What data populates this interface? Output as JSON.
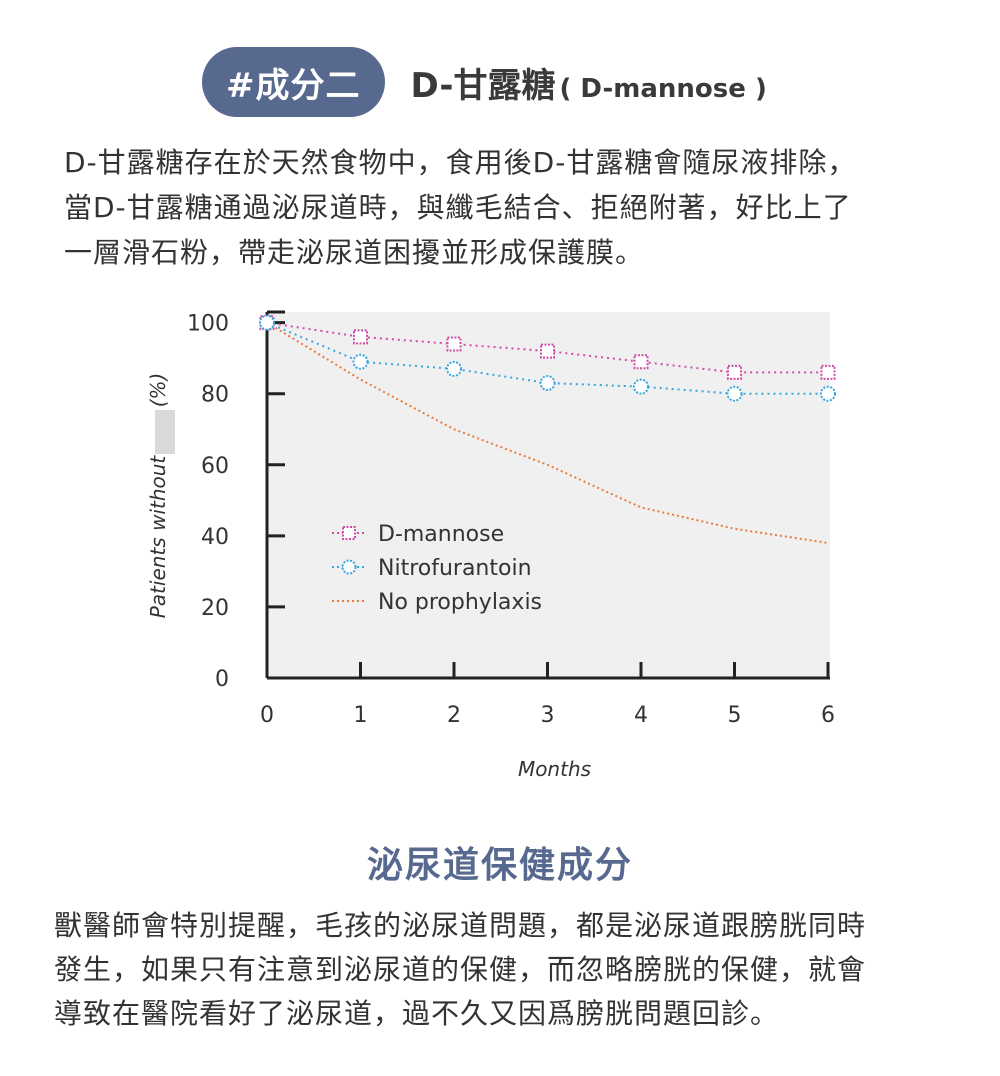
{
  "header": {
    "badge": "#成分二",
    "title": "D-甘露糖",
    "title_sub": "( D-mannose )"
  },
  "intro": {
    "lines": [
      "D-甘露糖存在於天然食物中，食用後D-甘露糖會隨尿液排除，",
      "當D-甘露糖通過泌尿道時，與纖毛結合、拒絕附著，好比上了",
      "一層滑石粉，帶走泌尿道困擾並形成保護膜。"
    ]
  },
  "chart_data": {
    "type": "line",
    "xlabel": "Months",
    "ylabel": "Patients without",
    "ylabel_unit": "(%)",
    "x": [
      0,
      1,
      2,
      3,
      4,
      5,
      6
    ],
    "xlim": [
      0,
      6
    ],
    "ylim": [
      0,
      100
    ],
    "xticks": [
      "0",
      "1",
      "2",
      "3",
      "4",
      "5",
      "6"
    ],
    "yticks": [
      "0",
      "20",
      "40",
      "60",
      "80",
      "100"
    ],
    "grid": false,
    "legend_position": "center-left",
    "series": [
      {
        "name": "D-mannose",
        "values": [
          100,
          96,
          94,
          92,
          89,
          86,
          86
        ],
        "color": "#d04ca8",
        "marker": "square"
      },
      {
        "name": "Nitrofurantoin",
        "values": [
          100,
          89,
          87,
          83,
          82,
          80,
          80
        ],
        "color": "#3aa5dd",
        "marker": "circle"
      },
      {
        "name": "No prophylaxis",
        "values": [
          100,
          84,
          70,
          60,
          48,
          42,
          38
        ],
        "color": "#e87b3a",
        "marker": "none"
      }
    ]
  },
  "section": {
    "title": "泌尿道保健成分",
    "lines": [
      "獸醫師會特別提醒，毛孩的泌尿道問題，都是泌尿道跟膀胱同時",
      "發生，如果只有注意到泌尿道的保健，而忽略膀胱的保健，就會",
      "導致在醫院看好了泌尿道，過不久又因爲膀胱問題回診。"
    ]
  },
  "colors": {
    "accent": "#57698f",
    "plot_background": "#f0f0f0"
  }
}
